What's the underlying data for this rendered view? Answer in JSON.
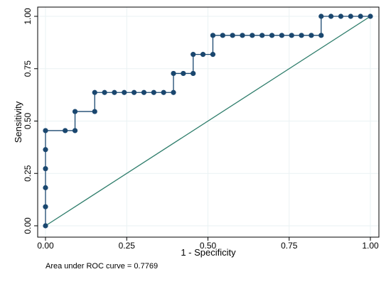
{
  "chart_data": {
    "type": "line",
    "title": "",
    "xlabel": "1 - Specificity",
    "ylabel": "Sensitivity",
    "xlim": [
      0,
      1
    ],
    "ylim": [
      0,
      1
    ],
    "x_ticks": [
      "0.00",
      "0.25",
      "0.50",
      "0.75",
      "1.00"
    ],
    "y_ticks": [
      "0.00",
      "0.25",
      "0.50",
      "0.75",
      "1.00"
    ],
    "grid": true,
    "note": "Area under ROC curve = 0.7769",
    "series": [
      {
        "type": "step",
        "color": "#1a476f",
        "marker": "circle",
        "points": [
          [
            0,
            0
          ],
          [
            0,
            0.0909
          ],
          [
            0,
            0.1818
          ],
          [
            0,
            0.2727
          ],
          [
            0,
            0.3636
          ],
          [
            0,
            0.4545
          ],
          [
            0.0606,
            0.4545
          ],
          [
            0.0909,
            0.4545
          ],
          [
            0.0909,
            0.5455
          ],
          [
            0.1515,
            0.5455
          ],
          [
            0.1515,
            0.6364
          ],
          [
            0.1818,
            0.6364
          ],
          [
            0.2121,
            0.6364
          ],
          [
            0.2424,
            0.6364
          ],
          [
            0.2727,
            0.6364
          ],
          [
            0.303,
            0.6364
          ],
          [
            0.3333,
            0.6364
          ],
          [
            0.3636,
            0.6364
          ],
          [
            0.3939,
            0.6364
          ],
          [
            0.3939,
            0.7273
          ],
          [
            0.4242,
            0.7273
          ],
          [
            0.4545,
            0.7273
          ],
          [
            0.4545,
            0.8182
          ],
          [
            0.4848,
            0.8182
          ],
          [
            0.5152,
            0.8182
          ],
          [
            0.5152,
            0.9091
          ],
          [
            0.5455,
            0.9091
          ],
          [
            0.5758,
            0.9091
          ],
          [
            0.6061,
            0.9091
          ],
          [
            0.6364,
            0.9091
          ],
          [
            0.6667,
            0.9091
          ],
          [
            0.697,
            0.9091
          ],
          [
            0.7273,
            0.9091
          ],
          [
            0.7576,
            0.9091
          ],
          [
            0.7879,
            0.9091
          ],
          [
            0.8182,
            0.9091
          ],
          [
            0.8485,
            0.9091
          ],
          [
            0.8485,
            1.0
          ],
          [
            0.8788,
            1.0
          ],
          [
            0.9091,
            1.0
          ],
          [
            0.9394,
            1.0
          ],
          [
            0.9697,
            1.0
          ],
          [
            1.0,
            1.0
          ]
        ]
      },
      {
        "type": "reference-line",
        "color": "#2e7d6b",
        "points": [
          [
            0,
            0
          ],
          [
            1,
            1
          ]
        ]
      }
    ]
  }
}
